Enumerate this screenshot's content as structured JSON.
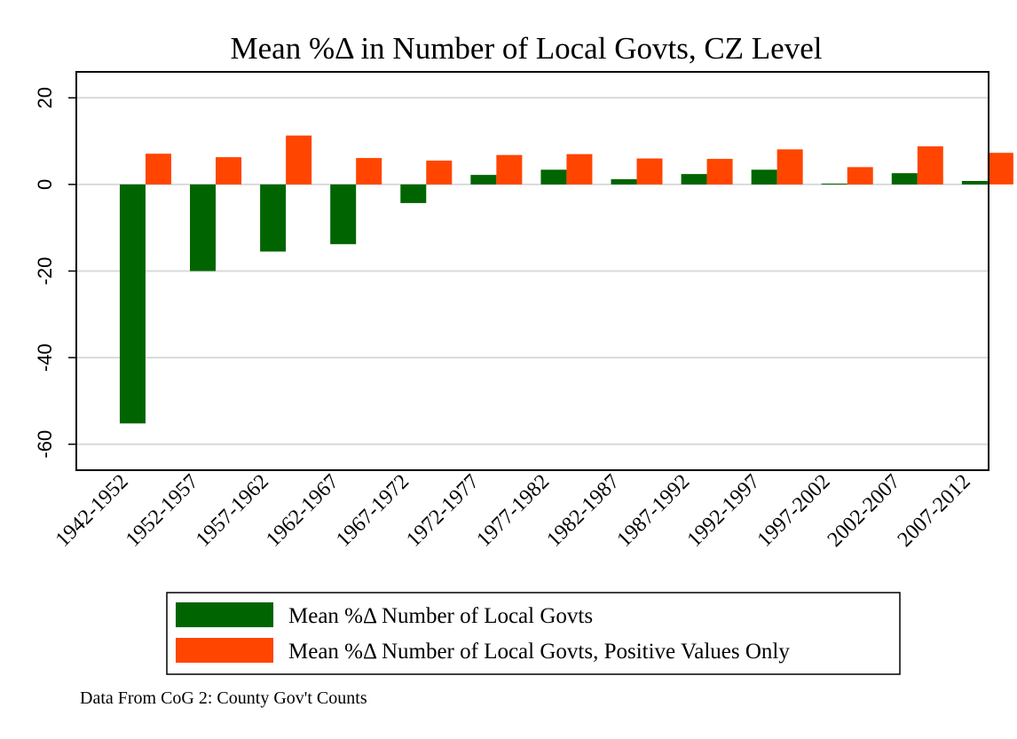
{
  "chart_data": {
    "type": "bar",
    "title": "Mean %Δ in Number of Local Govts, CZ Level",
    "xlabel": "",
    "ylabel": "",
    "categories": [
      "1942-1952",
      "1952-1957",
      "1957-1962",
      "1962-1967",
      "1967-1972",
      "1972-1977",
      "1977-1982",
      "1982-1987",
      "1987-1992",
      "1992-1997",
      "1997-2002",
      "2002-2007",
      "2007-2012"
    ],
    "series": [
      {
        "name": "Mean %Δ Number of Local Govts",
        "color": "#006400",
        "values": [
          -55.2,
          -20.0,
          -15.5,
          -13.8,
          -4.3,
          2.2,
          3.4,
          1.2,
          2.4,
          3.4,
          0.2,
          2.6,
          0.8
        ]
      },
      {
        "name": "Mean %Δ Number of Local Govts, Positive Values Only",
        "color": "#FF4500",
        "values": [
          7.1,
          6.3,
          11.3,
          6.1,
          5.5,
          6.8,
          7.0,
          6.0,
          5.9,
          8.1,
          4.0,
          8.8,
          7.3
        ]
      }
    ],
    "ylim": [
      -66,
      26
    ],
    "yticks": [
      20,
      0,
      -20,
      -40,
      -60
    ],
    "ytick_labels": [
      "20",
      "0",
      "-20",
      "-40",
      "-60"
    ],
    "grid": true,
    "legend_position": "bottom"
  },
  "note": "Data From CoG 2: County Gov't Counts"
}
